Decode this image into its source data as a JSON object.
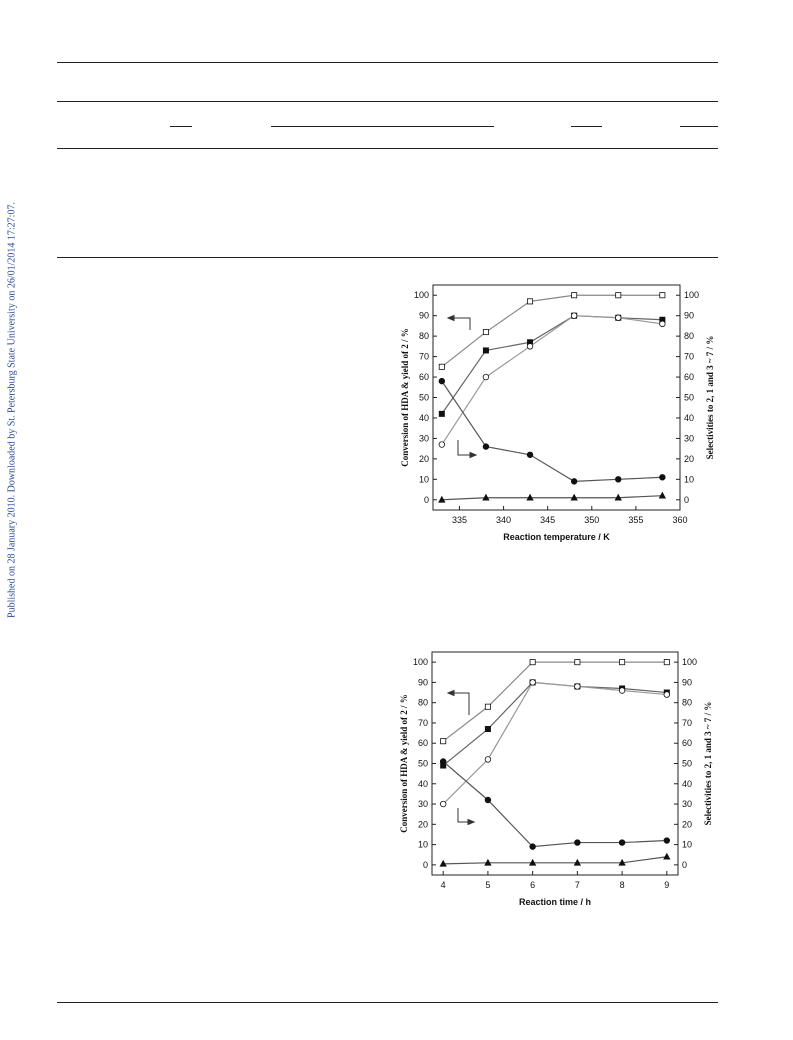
{
  "side_note": "Published on 28 January 2010. Downloaded by St. Petersburg State University on 26/01/2014 17:27:07.",
  "chart_data": [
    {
      "type": "line",
      "xlabel": "Reaction temperature / K",
      "ylabel": "Conversion of HDA & yield of 2 / %",
      "y2label": "Selectivities to 2, 1 and 3 ~ 7 / %",
      "x": [
        333,
        338,
        343,
        348,
        353,
        358
      ],
      "xlim": [
        332,
        360
      ],
      "xticks": [
        335,
        340,
        345,
        350,
        355,
        360
      ],
      "ylim": [
        -5,
        105
      ],
      "yticks": [
        0,
        10,
        20,
        30,
        40,
        50,
        60,
        70,
        80,
        90,
        100
      ],
      "y2lim": [
        -5,
        105
      ],
      "y2ticks": [
        0,
        10,
        20,
        30,
        40,
        50,
        60,
        70,
        80,
        90,
        100
      ],
      "series": [
        {
          "color": "#888888",
          "marker": "square-open",
          "values": [
            65,
            82,
            97,
            100,
            100,
            100
          ]
        },
        {
          "color": "#666666",
          "marker": "square",
          "values": [
            42,
            73,
            77,
            90,
            89,
            88
          ]
        },
        {
          "color": "#999999",
          "marker": "circle-open",
          "values": [
            27,
            60,
            75,
            90,
            89,
            86
          ]
        },
        {
          "color": "#555555",
          "marker": "circle",
          "values": [
            58,
            26,
            22,
            9,
            10,
            11
          ]
        },
        {
          "color": "#555555",
          "marker": "triangle",
          "values": [
            0,
            1,
            1,
            1,
            1,
            2
          ]
        }
      ]
    },
    {
      "type": "line",
      "xlabel": "Reaction time / h",
      "ylabel": "Conversion of HDA & yield of 2 / %",
      "y2label": "Selectivities to 2, 1 and 3 ~ 7 / %",
      "x": [
        4,
        5,
        6,
        7,
        8,
        9
      ],
      "xlim": [
        3.75,
        9.25
      ],
      "xticks": [
        4,
        5,
        6,
        7,
        8,
        9
      ],
      "ylim": [
        -5,
        105
      ],
      "yticks": [
        0,
        10,
        20,
        30,
        40,
        50,
        60,
        70,
        80,
        90,
        100
      ],
      "y2lim": [
        -5,
        105
      ],
      "y2ticks": [
        0,
        10,
        20,
        30,
        40,
        50,
        60,
        70,
        80,
        90,
        100
      ],
      "series": [
        {
          "color": "#888888",
          "marker": "square-open",
          "values": [
            61,
            78,
            100,
            100,
            100,
            100
          ]
        },
        {
          "color": "#666666",
          "marker": "square",
          "values": [
            49,
            67,
            90,
            88,
            87,
            85
          ]
        },
        {
          "color": "#999999",
          "marker": "circle-open",
          "values": [
            30,
            52,
            90,
            88,
            86,
            84
          ]
        },
        {
          "color": "#555555",
          "marker": "circle",
          "values": [
            51,
            32,
            9,
            11,
            11,
            12
          ]
        },
        {
          "color": "#555555",
          "marker": "triangle",
          "values": [
            0.5,
            1,
            1,
            1,
            1,
            4
          ]
        }
      ]
    }
  ]
}
